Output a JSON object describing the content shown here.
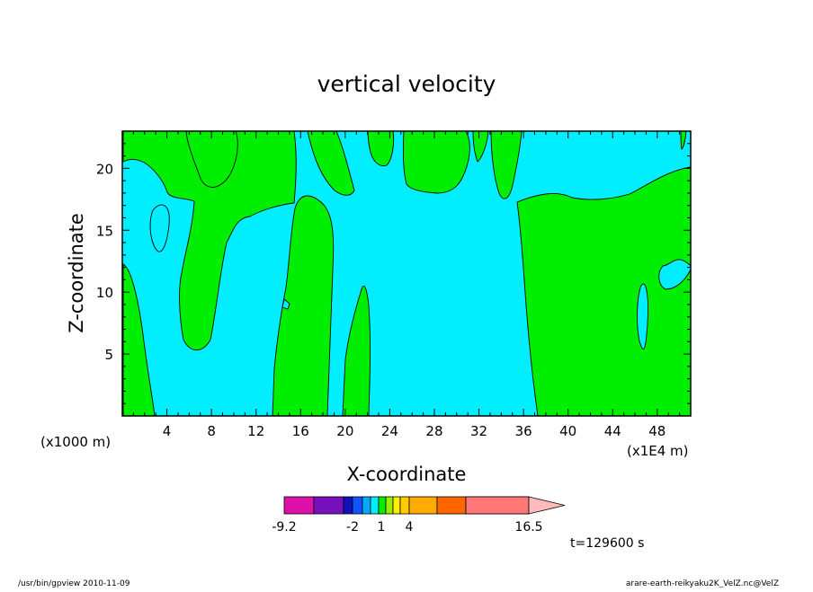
{
  "chart_data": {
    "type": "heatmap",
    "title": "vertical velocity",
    "xlabel": "X-coordinate",
    "ylabel": "Z-coordinate",
    "x_scale_left": "(x1000 m)",
    "x_scale_right": "(x1E4 m)",
    "xlim": [
      0,
      51
    ],
    "ylim": [
      0,
      23
    ],
    "xticks": [
      4,
      8,
      12,
      16,
      20,
      24,
      28,
      32,
      36,
      40,
      44,
      48
    ],
    "yticks": [
      5,
      10,
      15,
      20
    ],
    "time_label": "t=129600 s",
    "colors": {
      "positive": "#00ee00",
      "negative": "#00eeff",
      "contour_line": "#000000"
    },
    "colorbar": {
      "tick_labels": [
        "-9.2",
        "-2",
        "1",
        "4",
        "16.5"
      ],
      "segment_colors": [
        "#dd11aa",
        "#7711bb",
        "#1111bb",
        "#1155ff",
        "#00aaff",
        "#00eeff",
        "#00ee00",
        "#99ee00",
        "#ffee00",
        "#ffcc00",
        "#ffaa00",
        "#ff6600",
        "#ff2200",
        "#ff7777"
      ],
      "triangle_color": "#ffbbbb"
    }
  },
  "footer": {
    "left": "/usr/bin/gpview   2010-11-09",
    "right": "arare-earth-reikyaku2K_VelZ.nc@VelZ"
  }
}
